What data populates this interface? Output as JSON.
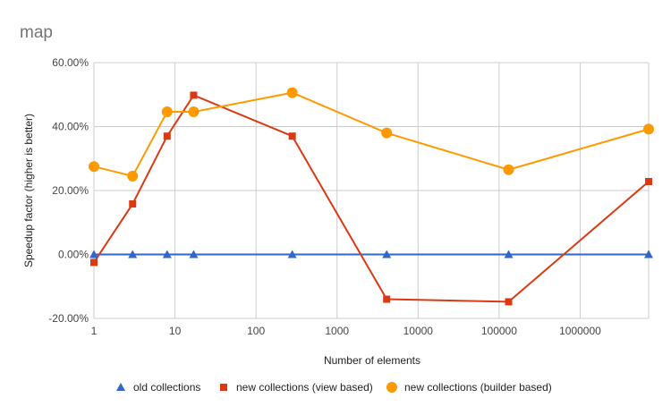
{
  "chart_data": {
    "type": "line",
    "title": "map",
    "xlabel": "Number of elements",
    "ylabel": "Speedup factor (higher is better)",
    "x_scale": "log",
    "xlim": [
      1,
      7000000
    ],
    "ylim": [
      -20,
      60
    ],
    "grid": true,
    "legend_position": "bottom",
    "x_tick_labels": [
      "1",
      "10",
      "100",
      "1000",
      "10000",
      "100000",
      "1000000"
    ],
    "x_tick_values": [
      1,
      10,
      100,
      1000,
      10000,
      100000,
      1000000
    ],
    "y_tick_labels": [
      "60.00%",
      "40.00%",
      "20.00%",
      "0.00%",
      "-20.00%"
    ],
    "y_tick_values": [
      60,
      40,
      20,
      0,
      -20
    ],
    "x": [
      1,
      3,
      8,
      17,
      280,
      4096,
      131072,
      7000000
    ],
    "series": [
      {
        "name": "old collections",
        "marker": "triangle",
        "color": "#3366cc",
        "values": [
          0,
          0,
          0,
          0,
          0,
          0,
          0,
          0
        ]
      },
      {
        "name": "new collections (view based)",
        "marker": "square",
        "color": "#dc3912",
        "values": [
          -2.5,
          15.8,
          37,
          49.8,
          37,
          -14,
          -14.8,
          22.8
        ]
      },
      {
        "name": "new collections (builder based)",
        "marker": "circle",
        "color": "#ff9900",
        "values": [
          27.5,
          24.5,
          44.6,
          44.6,
          50.6,
          38,
          26.5,
          39.2
        ]
      }
    ]
  }
}
